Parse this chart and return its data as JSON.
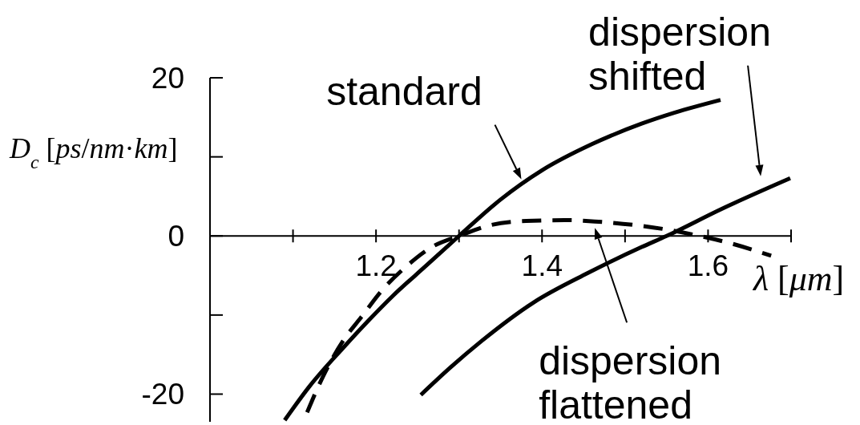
{
  "chart_data": {
    "type": "line",
    "ylabel": "D$_{c}$ [ps/nm·km]",
    "xlabel": "λ [μm]",
    "xlim": [
      1.0,
      1.7
    ],
    "xticks": [
      {
        "value": 1.1,
        "label": null
      },
      1.2,
      {
        "value": 1.3,
        "label": null
      },
      1.4,
      {
        "value": 1.5,
        "label": null
      },
      1.6,
      {
        "value": 1.7,
        "label": null
      }
    ],
    "ylim": [
      -23.5,
      20
    ],
    "yticks": [
      -20,
      {
        "value": -10,
        "label": null
      },
      0,
      {
        "value": 10,
        "label": null
      },
      20
    ],
    "marker": "none",
    "series": [
      {
        "color": "#000000",
        "line_style": "solid",
        "x": [
          1.09,
          1.12,
          1.16,
          1.19,
          1.22,
          1.26,
          1.3,
          1.35,
          1.4,
          1.46,
          1.52,
          1.56,
          1.615
        ],
        "values": [
          -23.3,
          -19.0,
          -14.2,
          -10.8,
          -7.6,
          -3.8,
          0,
          4.6,
          8.3,
          11.6,
          14.2,
          15.6,
          17.2
        ]
      },
      {
        "color": "#000000",
        "line_style": "solid",
        "x": [
          1.254,
          1.29,
          1.327,
          1.39,
          1.455,
          1.52,
          1.55,
          1.616,
          1.699
        ],
        "values": [
          -20.1,
          -16.6,
          -13.3,
          -8.4,
          -4.7,
          -1.4,
          0,
          3.4,
          7.3
        ]
      },
      {
        "color": "#000000",
        "line_style": "dashed",
        "x": [
          1.117,
          1.136,
          1.162,
          1.182,
          1.207,
          1.236,
          1.269,
          1.3,
          1.339,
          1.381,
          1.43,
          1.468,
          1.51,
          1.545,
          1.59,
          1.626,
          1.676
        ],
        "values": [
          -22.3,
          -17.8,
          -13.0,
          -10.3,
          -6.9,
          -3.9,
          -1.3,
          0,
          1.4,
          1.9,
          2.0,
          1.8,
          1.4,
          0.9,
          0,
          -0.9,
          -2.5
        ]
      }
    ],
    "annotations": [
      "standard",
      "dispersion shifted",
      "dispersion flattened"
    ]
  }
}
